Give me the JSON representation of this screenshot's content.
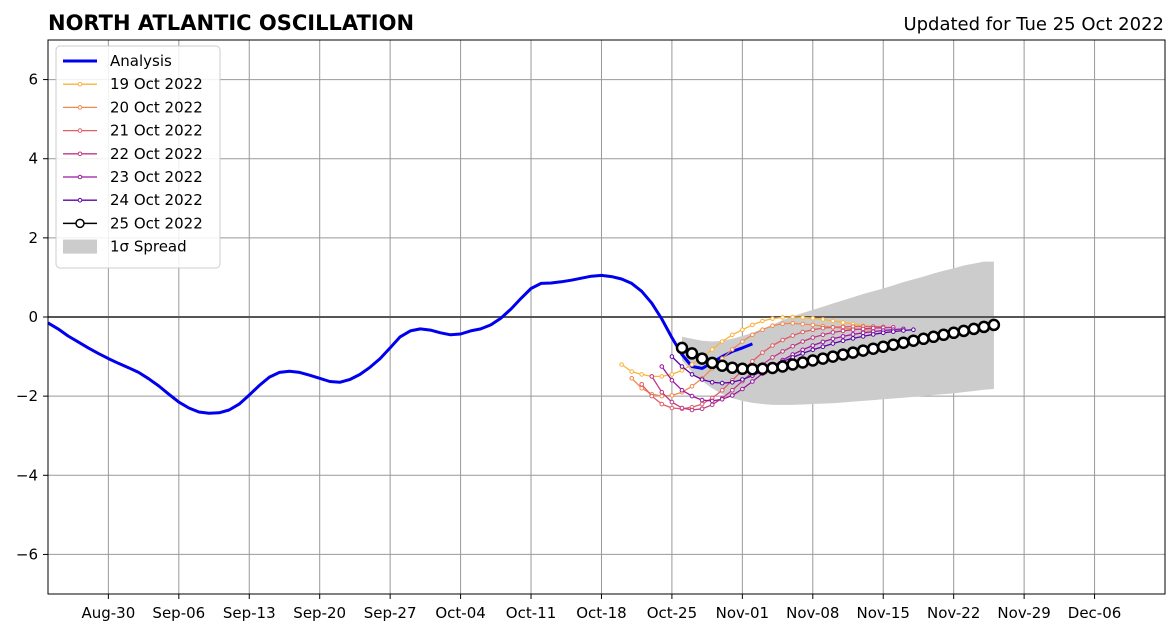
{
  "chart_data": {
    "type": "line",
    "title": "NORTH ATLANTIC OSCILLATION",
    "subtitle": "Updated for Tue 25 Oct 2022",
    "xlabel": "",
    "ylabel": "",
    "ylim": [
      -7,
      7
    ],
    "xlim": [
      "2022-08-24",
      "2022-12-13"
    ],
    "x_ticks": [
      "Aug-30",
      "Sep-06",
      "Sep-13",
      "Sep-20",
      "Sep-27",
      "Oct-04",
      "Oct-11",
      "Oct-18",
      "Oct-25",
      "Nov-01",
      "Nov-08",
      "Nov-15",
      "Nov-22",
      "Nov-29",
      "Dec-06"
    ],
    "x_tick_dates": [
      "2022-08-30",
      "2022-09-06",
      "2022-09-13",
      "2022-09-20",
      "2022-09-27",
      "2022-10-04",
      "2022-10-11",
      "2022-10-18",
      "2022-10-25",
      "2022-11-01",
      "2022-11-08",
      "2022-11-15",
      "2022-11-22",
      "2022-11-29",
      "2022-12-06"
    ],
    "y_ticks": [
      -6,
      -4,
      -2,
      0,
      2,
      4,
      6
    ],
    "y_tick_labels": [
      "−6",
      "−4",
      "−2",
      "0",
      "2",
      "4",
      "6"
    ],
    "grid": true,
    "legend_position": "top-left",
    "analysis": {
      "name": "Analysis",
      "color": "#0000ee",
      "start": "2022-08-24",
      "values": [
        -0.15,
        -0.3,
        -0.48,
        -0.63,
        -0.78,
        -0.92,
        -1.05,
        -1.17,
        -1.28,
        -1.4,
        -1.56,
        -1.74,
        -1.95,
        -2.15,
        -2.3,
        -2.4,
        -2.43,
        -2.42,
        -2.35,
        -2.2,
        -1.97,
        -1.73,
        -1.52,
        -1.4,
        -1.37,
        -1.4,
        -1.47,
        -1.55,
        -1.63,
        -1.65,
        -1.58,
        -1.45,
        -1.27,
        -1.05,
        -0.78,
        -0.5,
        -0.35,
        -0.3,
        -0.33,
        -0.4,
        -0.45,
        -0.43,
        -0.35,
        -0.3,
        -0.2,
        -0.03,
        0.2,
        0.47,
        0.72,
        0.85,
        0.86,
        0.89,
        0.93,
        0.98,
        1.03,
        1.05,
        1.02,
        0.96,
        0.85,
        0.65,
        0.35,
        -0.05,
        -0.52,
        -0.95,
        -1.25,
        -1.3,
        -1.15,
        -1.0,
        -0.87,
        -0.78,
        -0.68
      ]
    },
    "forecasts": [
      {
        "name": "19 Oct 2022",
        "color": "#fcb33c",
        "start": "2022-10-20",
        "values": [
          -1.2,
          -1.38,
          -1.45,
          -1.5,
          -1.5,
          -1.45,
          -1.35,
          -1.2,
          -1.02,
          -0.82,
          -0.62,
          -0.45,
          -0.32,
          -0.2,
          -0.1,
          -0.04,
          -0.01,
          0.0,
          -0.01,
          -0.03,
          -0.06,
          -0.1,
          -0.14,
          -0.18,
          -0.22,
          -0.25
        ]
      },
      {
        "name": "20 Oct 2022",
        "color": "#f08b4f",
        "start": "2022-10-21",
        "values": [
          -1.55,
          -1.8,
          -1.95,
          -2.0,
          -1.98,
          -1.9,
          -1.75,
          -1.55,
          -1.3,
          -1.05,
          -0.82,
          -0.62,
          -0.45,
          -0.32,
          -0.22,
          -0.17,
          -0.16,
          -0.18,
          -0.2,
          -0.23,
          -0.26,
          -0.28,
          -0.3,
          -0.32,
          -0.33
        ]
      },
      {
        "name": "21 Oct 2022",
        "color": "#df5e66",
        "start": "2022-10-22",
        "values": [
          -1.7,
          -2.0,
          -2.2,
          -2.3,
          -2.32,
          -2.28,
          -2.2,
          -2.05,
          -1.85,
          -1.6,
          -1.35,
          -1.12,
          -0.9,
          -0.72,
          -0.58,
          -0.47,
          -0.38,
          -0.32,
          -0.28,
          -0.26,
          -0.25,
          -0.24,
          -0.24,
          -0.24,
          -0.25
        ]
      },
      {
        "name": "22 Oct 2022",
        "color": "#bf3984",
        "start": "2022-10-23",
        "values": [
          -1.5,
          -1.9,
          -2.15,
          -2.3,
          -2.35,
          -2.32,
          -2.22,
          -2.05,
          -1.85,
          -1.62,
          -1.4,
          -1.2,
          -1.02,
          -0.87,
          -0.74,
          -0.62,
          -0.52,
          -0.45,
          -0.39,
          -0.35,
          -0.32,
          -0.3,
          -0.28,
          -0.27,
          -0.26
        ]
      },
      {
        "name": "23 Oct 2022",
        "color": "#9c179e",
        "start": "2022-10-24",
        "values": [
          -1.25,
          -1.6,
          -1.85,
          -2.0,
          -2.1,
          -2.12,
          -2.08,
          -1.98,
          -1.82,
          -1.63,
          -1.43,
          -1.25,
          -1.09,
          -0.95,
          -0.83,
          -0.72,
          -0.63,
          -0.55,
          -0.49,
          -0.44,
          -0.4,
          -0.37,
          -0.34,
          -0.32,
          -0.3
        ]
      },
      {
        "name": "24 Oct 2022",
        "color": "#5c03a6",
        "start": "2022-10-25",
        "values": [
          -1.0,
          -1.25,
          -1.45,
          -1.58,
          -1.65,
          -1.67,
          -1.65,
          -1.58,
          -1.48,
          -1.37,
          -1.25,
          -1.13,
          -1.02,
          -0.92,
          -0.83,
          -0.75,
          -0.67,
          -0.6,
          -0.54,
          -0.49,
          -0.44,
          -0.4,
          -0.37,
          -0.34,
          -0.32
        ]
      }
    ],
    "latest": {
      "name": "25 Oct 2022",
      "color": "#000000",
      "start": "2022-10-26",
      "values": [
        -0.78,
        -0.92,
        -1.05,
        -1.16,
        -1.23,
        -1.28,
        -1.31,
        -1.32,
        -1.31,
        -1.29,
        -1.25,
        -1.2,
        -1.15,
        -1.1,
        -1.05,
        -1.0,
        -0.95,
        -0.9,
        -0.85,
        -0.8,
        -0.75,
        -0.7,
        -0.65,
        -0.6,
        -0.55,
        -0.5,
        -0.45,
        -0.4,
        -0.35,
        -0.3,
        -0.25,
        -0.2
      ]
    },
    "spread": {
      "name": "1σ Spread",
      "color": "#cccccc",
      "start": "2022-10-26",
      "upper": [
        -0.5,
        -0.55,
        -0.6,
        -0.62,
        -0.6,
        -0.55,
        -0.48,
        -0.4,
        -0.3,
        -0.2,
        -0.08,
        0.02,
        0.1,
        0.18,
        0.26,
        0.34,
        0.42,
        0.5,
        0.58,
        0.65,
        0.72,
        0.8,
        0.88,
        0.95,
        1.02,
        1.1,
        1.17,
        1.23,
        1.3,
        1.35,
        1.4,
        1.4
      ],
      "lower": [
        -1.1,
        -1.4,
        -1.62,
        -1.8,
        -1.95,
        -2.05,
        -2.12,
        -2.17,
        -2.2,
        -2.22,
        -2.22,
        -2.22,
        -2.21,
        -2.2,
        -2.19,
        -2.18,
        -2.16,
        -2.14,
        -2.12,
        -2.1,
        -2.08,
        -2.06,
        -2.04,
        -2.02,
        -2.0,
        -1.97,
        -1.95,
        -1.93,
        -1.9,
        -1.87,
        -1.84,
        -1.82
      ]
    }
  },
  "legend": [
    {
      "label": "Analysis"
    },
    {
      "label": "19 Oct 2022"
    },
    {
      "label": "20 Oct 2022"
    },
    {
      "label": "21 Oct 2022"
    },
    {
      "label": "22 Oct 2022"
    },
    {
      "label": "23 Oct 2022"
    },
    {
      "label": "24 Oct 2022"
    },
    {
      "label": "25 Oct 2022"
    },
    {
      "label": "1σ Spread"
    }
  ]
}
